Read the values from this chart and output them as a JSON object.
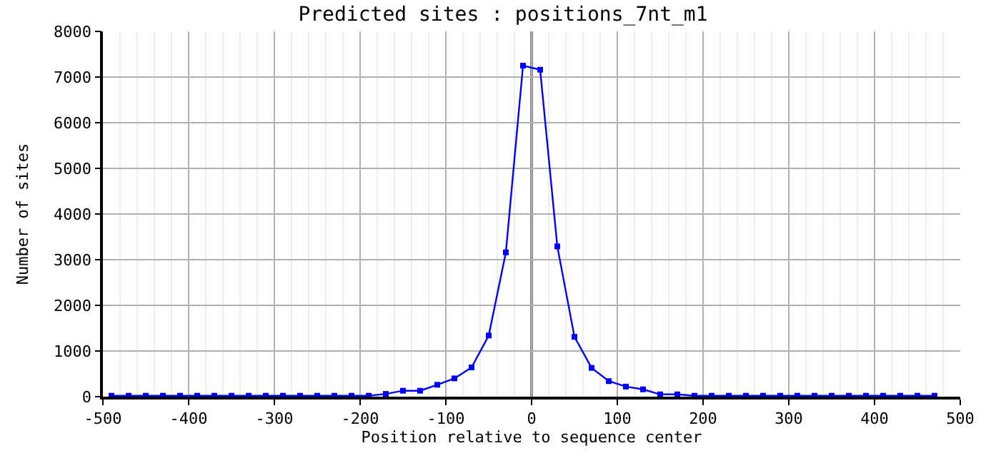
{
  "chart_data": {
    "type": "line",
    "title": "Predicted sites : positions_7nt_m1",
    "xlabel": "Position relative to sequence center",
    "ylabel": "Number of sites",
    "x": [
      -490,
      -470,
      -450,
      -430,
      -410,
      -390,
      -370,
      -350,
      -330,
      -310,
      -290,
      -270,
      -250,
      -230,
      -210,
      -190,
      -170,
      -150,
      -130,
      -110,
      -90,
      -70,
      -50,
      -30,
      -10,
      10,
      30,
      50,
      70,
      90,
      110,
      130,
      150,
      170,
      190,
      210,
      230,
      250,
      270,
      290,
      310,
      330,
      350,
      370,
      390,
      410,
      430,
      450,
      470
    ],
    "series": [
      {
        "color": "#0000ff",
        "values": [
          20,
          20,
          20,
          20,
          20,
          20,
          20,
          20,
          20,
          20,
          20,
          20,
          20,
          20,
          20,
          20,
          60,
          130,
          130,
          260,
          400,
          640,
          1340,
          3160,
          7250,
          7160,
          3290,
          1310,
          630,
          340,
          220,
          160,
          50,
          50,
          20,
          20,
          20,
          20,
          20,
          20,
          20,
          20,
          20,
          20,
          20,
          20,
          20,
          20,
          20
        ]
      }
    ],
    "xlim": [
      -500,
      500
    ],
    "xticks": [
      -500,
      -400,
      -300,
      -200,
      -100,
      0,
      100,
      200,
      300,
      400,
      500
    ],
    "ylim": [
      0,
      8000
    ],
    "yticks": [
      0,
      1000,
      2000,
      3000,
      4000,
      5000,
      6000,
      7000,
      8000
    ],
    "ref_lines": [
      {
        "axis": "x",
        "value": 0,
        "color": "#000000"
      }
    ],
    "grid": true,
    "marker": "square",
    "line_style": "solid"
  }
}
